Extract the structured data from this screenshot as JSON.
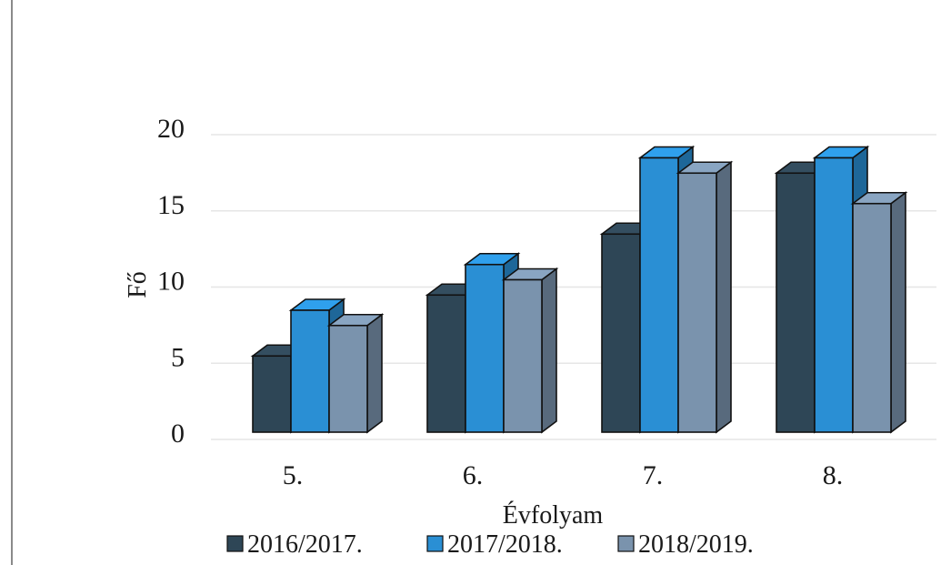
{
  "chart_data": {
    "type": "bar",
    "style": "3d-clustered-column",
    "title": "",
    "xlabel": "Évfolyam",
    "ylabel": "Fő",
    "categories": [
      "5.",
      "6.",
      "7.",
      "8."
    ],
    "yticks": [
      "0",
      "5",
      "10",
      "15",
      "20"
    ],
    "ylim": [
      0,
      20
    ],
    "grid": true,
    "legend_position": "bottom",
    "series": [
      {
        "name": "2016/2017.",
        "values": [
          5,
          9,
          13,
          17
        ],
        "color": "#2e4656"
      },
      {
        "name": "2017/2018.",
        "values": [
          8,
          11,
          18,
          18
        ],
        "color": "#2a8fd4"
      },
      {
        "name": "2018/2019.",
        "values": [
          7,
          10,
          17,
          15
        ],
        "color": "#7a93ad"
      }
    ]
  }
}
